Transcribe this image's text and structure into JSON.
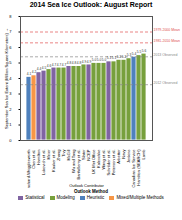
{
  "chart_data": {
    "type": "bar",
    "title": "2014 Sea Ice Outlook: August Report",
    "x_label": "Outlook Contributor",
    "y_label": "September Sea Ice Extent (Million Square Kilometers)",
    "legend_title": "Outlook Method",
    "categories": [
      "Blanchard-Wrigglesworth",
      "Chen et al.",
      "Hamilton",
      "Lukovich et al.",
      "Meier",
      "Kauker et al.",
      "Zhang",
      "Tivy",
      "McGill",
      "Wu and Tang",
      "Barthélemy et al.",
      "Slater",
      "NCEP",
      "UK Met Office",
      "Kaleschke",
      "Wang et al.",
      "Schröder et al.",
      "Peterson et al.",
      "Arbetter",
      "Navy",
      "Jenkins",
      "Canadian Ice Service",
      "Hamilton (SEARCH)",
      "Lamb"
    ],
    "series": [
      {
        "name": "Statistical",
        "color": "#8064a2",
        "values": [
          null,
          null,
          4.4,
          4.5,
          null,
          4.7,
          null,
          null,
          4.8,
          null,
          null,
          null,
          4.9,
          null,
          null,
          null,
          5.1,
          null,
          null,
          null,
          null,
          null,
          null,
          null
        ]
      },
      {
        "name": "Modeling",
        "color": "#77a03c",
        "values": [
          null,
          null,
          null,
          null,
          4.6,
          null,
          4.7,
          4.7,
          null,
          4.8,
          4.8,
          4.9,
          null,
          5.0,
          5.0,
          5.0,
          null,
          5.1,
          5.2,
          5.2,
          5.3,
          null,
          5.5,
          5.6
        ]
      },
      {
        "name": "Heuristic",
        "color": "#4f81bd",
        "values": [
          4.1,
          null,
          null,
          null,
          null,
          null,
          null,
          null,
          null,
          null,
          null,
          null,
          null,
          null,
          null,
          null,
          null,
          null,
          null,
          null,
          null,
          5.4,
          null,
          null
        ]
      },
      {
        "name": "Mixed/Multiple Methods",
        "color": "#f79646",
        "values": [
          null,
          4.2,
          null,
          null,
          null,
          null,
          null,
          null,
          null,
          null,
          null,
          null,
          null,
          null,
          null,
          null,
          null,
          null,
          null,
          null,
          null,
          null,
          null,
          null
        ]
      }
    ],
    "annotations": [
      {
        "y": 7.0,
        "text": "1979-2000 Mean",
        "color": "#e05050"
      },
      {
        "y": 6.3,
        "text": "1981-2010 Mean",
        "color": "#e05050"
      },
      {
        "y": 5.4,
        "text": "2013 Observed",
        "color": "#888888"
      },
      {
        "y": 3.6,
        "text": "2012 Observed",
        "color": "#888888"
      }
    ],
    "ylim": [
      0,
      8
    ],
    "yticks": [
      0,
      1,
      2,
      3,
      4,
      5,
      6,
      7,
      8
    ],
    "grid": false,
    "data_labels": true,
    "legend": "bottom"
  }
}
